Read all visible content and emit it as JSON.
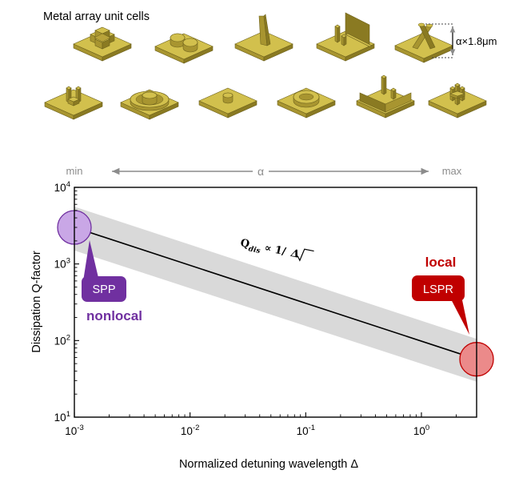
{
  "header": {
    "title": "Metal array unit cells",
    "dimension_label": "α×1.8μm"
  },
  "unit_cells": {
    "row1": [
      "square-ring-cell",
      "double-disk-cell",
      "slanted-pillar-cell",
      "corner-wall-cell",
      "v-rods-cell"
    ],
    "row2": [
      "u-shape-cell",
      "ring-disk-cell",
      "small-cylinder-cell",
      "annulus-cell",
      "frame-cell",
      "cross-lattice-cell"
    ]
  },
  "colors": {
    "gold": "#d2c04d",
    "gold_side": "#a89530",
    "band": "#d9d9d9",
    "line": "#000000",
    "spp": "#7030a0",
    "spp_marker": "#c9a7e6",
    "lspr": "#c00000",
    "lspr_marker": "#eb8a8a",
    "arrow": "#8c8c8c"
  },
  "chart_data": {
    "type": "line",
    "xscale": "log",
    "yscale": "log",
    "xlim": [
      0.001,
      3
    ],
    "ylim": [
      10,
      10000
    ],
    "xlabel": "Normalized detuning wavelength Δ",
    "ylabel": "Dissipation Q-factor",
    "x_ticks": [
      0.001,
      0.01,
      0.1,
      1
    ],
    "x_tick_labels": [
      {
        "base": "10",
        "exp": "-3"
      },
      {
        "base": "10",
        "exp": "-2"
      },
      {
        "base": "10",
        "exp": "-1"
      },
      {
        "base": "10",
        "exp": "0"
      }
    ],
    "y_ticks": [
      10,
      100,
      1000,
      10000
    ],
    "y_tick_labels": [
      {
        "base": "10",
        "exp": "1"
      },
      {
        "base": "10",
        "exp": "2"
      },
      {
        "base": "10",
        "exp": "3"
      },
      {
        "base": "10",
        "exp": "4"
      }
    ],
    "series": [
      {
        "name": "Q_dis fit",
        "x": [
          0.001,
          3
        ],
        "y": [
          3000,
          57
        ]
      }
    ],
    "band": {
      "x": [
        0.001,
        3
      ],
      "y_upper": [
        5600,
        105
      ],
      "y_lower": [
        1500,
        29
      ]
    },
    "markers": [
      {
        "name": "SPP",
        "x": 0.001,
        "y": 3000
      },
      {
        "name": "LSPR",
        "x": 3,
        "y": 57
      }
    ],
    "formula": {
      "lead": "Q",
      "sub": "dis",
      "rel": " ∝ ",
      "one": "1/",
      "radicand": "Δ"
    },
    "alpha_axis": {
      "min_label": "min",
      "max_label": "max",
      "symbol": "α"
    },
    "annotations": {
      "spp_label": "SPP",
      "spp_desc": "nonlocal",
      "lspr_label": "LSPR",
      "lspr_desc": "local"
    }
  }
}
